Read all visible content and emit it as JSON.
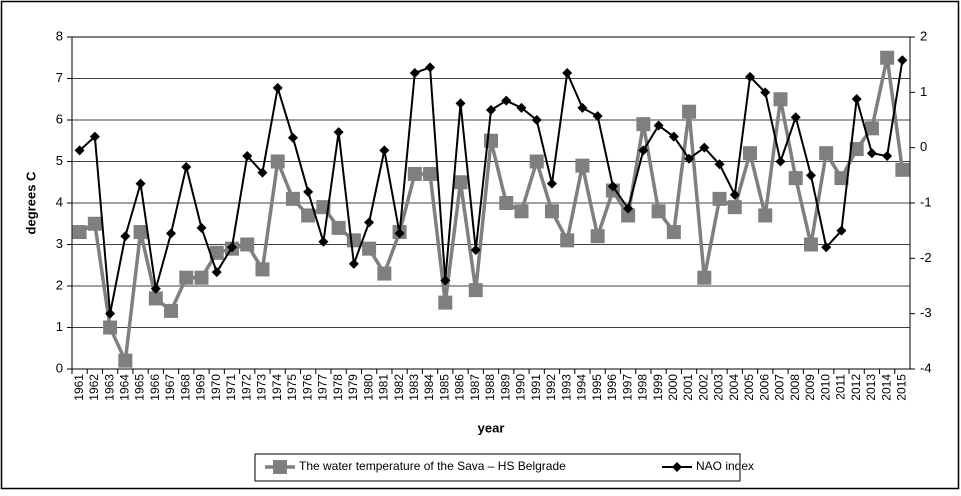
{
  "chart_data": {
    "type": "line",
    "y_label": "degrees C",
    "x_label": "year",
    "categories": [
      "1961",
      "1962",
      "1963",
      "1964",
      "1965",
      "1966",
      "1967",
      "1968",
      "1969",
      "1970",
      "1971",
      "1972",
      "1973",
      "1974",
      "1975",
      "1976",
      "1977",
      "1978",
      "1979",
      "1980",
      "1981",
      "1982",
      "1983",
      "1984",
      "1985",
      "1986",
      "1987",
      "1988",
      "1989",
      "1990",
      "1991",
      "1992",
      "1993",
      "1994",
      "1995",
      "1996",
      "1997",
      "1998",
      "1999",
      "2000",
      "2001",
      "2002",
      "2003",
      "2004",
      "2005",
      "2006",
      "2007",
      "2008",
      "2009",
      "2010",
      "2011",
      "2012",
      "2013",
      "2014",
      "2015"
    ],
    "series": [
      {
        "name": "The water temperature of the Sava – HS Belgrade",
        "color": "#7f7f7f",
        "marker": "square",
        "axis": "y",
        "values": [
          3.3,
          3.5,
          1.0,
          0.2,
          3.3,
          1.7,
          1.4,
          2.2,
          2.2,
          2.8,
          2.9,
          3.0,
          2.4,
          5.0,
          4.1,
          3.7,
          3.9,
          3.4,
          3.1,
          2.9,
          2.3,
          3.3,
          4.7,
          4.7,
          1.6,
          4.5,
          1.9,
          5.5,
          4.0,
          3.8,
          5.0,
          3.8,
          3.1,
          4.9,
          3.2,
          4.3,
          3.7,
          5.9,
          3.8,
          3.3,
          6.2,
          2.2,
          4.1,
          3.9,
          5.2,
          3.7,
          6.5,
          4.6,
          3.0,
          5.2,
          4.6,
          5.3,
          5.8,
          7.5,
          4.8
        ]
      },
      {
        "name": "NAO index",
        "color": "#000000",
        "marker": "diamond",
        "axis": "y2",
        "values": [
          -0.05,
          0.2,
          -3.0,
          -1.6,
          -0.65,
          -2.55,
          -1.55,
          -0.35,
          -1.45,
          -2.25,
          -1.8,
          -0.15,
          -0.45,
          1.08,
          0.18,
          -0.8,
          -1.7,
          0.28,
          -2.1,
          -1.35,
          -0.05,
          -1.55,
          1.35,
          1.45,
          -2.4,
          0.8,
          -1.85,
          0.68,
          0.85,
          0.72,
          0.5,
          -0.65,
          1.35,
          0.72,
          0.57,
          -0.7,
          -1.1,
          -0.05,
          0.4,
          0.2,
          -0.2,
          0.0,
          -0.3,
          -0.85,
          1.28,
          1.0,
          -0.25,
          0.55,
          -0.5,
          -1.8,
          -1.5,
          0.88,
          -0.1,
          -0.15,
          1.58
        ]
      }
    ],
    "ylim": [
      0,
      8
    ],
    "yticks": [
      0,
      1,
      2,
      3,
      4,
      5,
      6,
      7,
      8
    ],
    "y2lim": [
      -4,
      2
    ],
    "y2ticks": [
      -4,
      -3,
      -2,
      -1,
      0,
      1,
      2
    ],
    "grid": true,
    "legend": "bottom"
  }
}
